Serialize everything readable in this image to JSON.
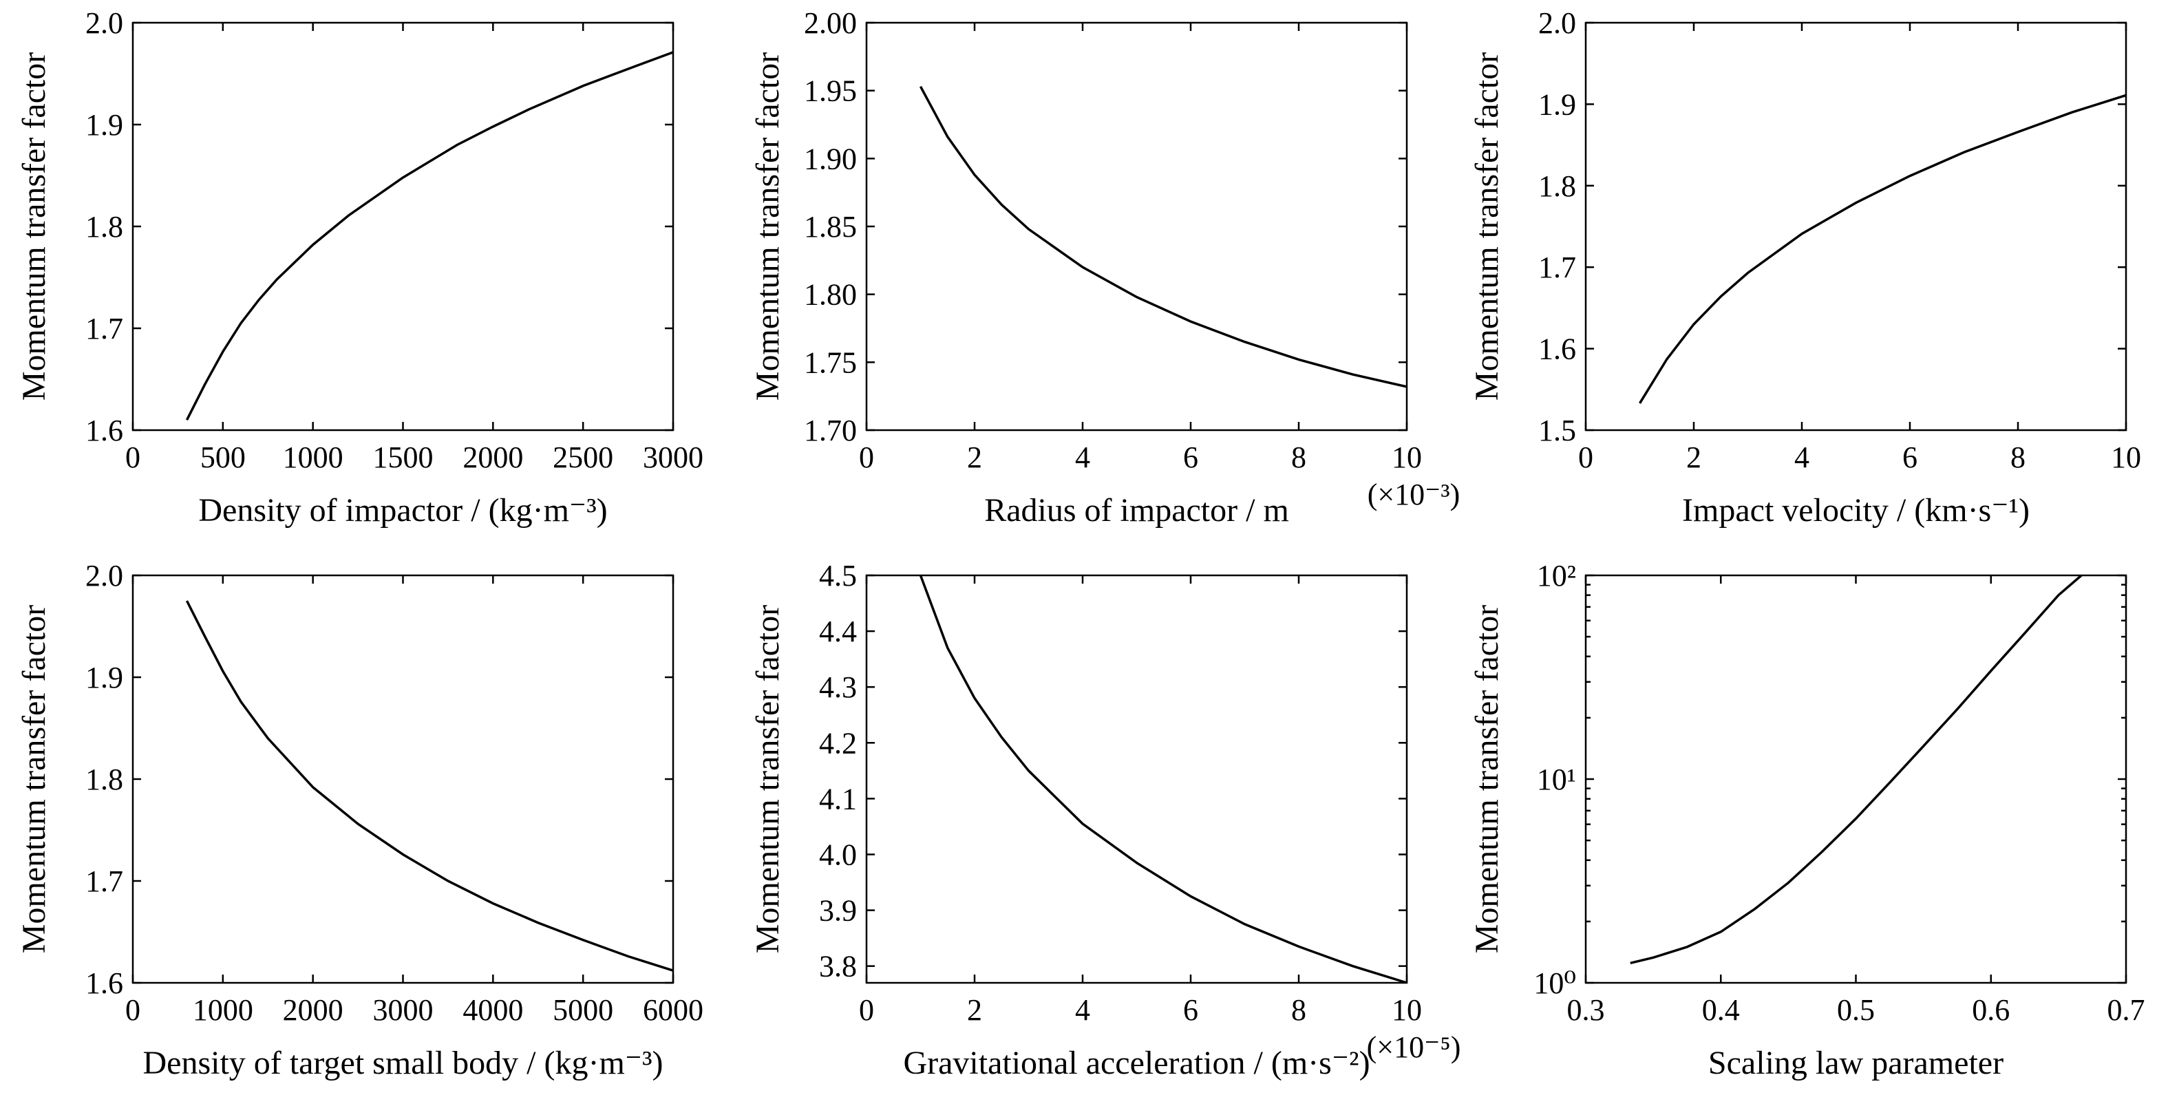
{
  "chart_data": [
    {
      "id": "p1",
      "type": "line",
      "xlabel": "Density of impactor / (kg·m⁻³)",
      "ylabel": "Momentum transfer factor",
      "xlim": [
        0,
        3000
      ],
      "ylim": [
        1.6,
        2.0
      ],
      "xticks": [
        0,
        500,
        1000,
        1500,
        2000,
        2500,
        3000
      ],
      "xtick_labels": [
        "0",
        "500",
        "1000",
        "1500",
        "2000",
        "2500",
        "3000"
      ],
      "yticks": [
        1.6,
        1.7,
        1.8,
        1.9,
        2.0
      ],
      "ytick_labels": [
        "1.6",
        "1.7",
        "1.8",
        "1.9",
        "2.0"
      ],
      "x_multiplier": "",
      "yscale": "linear",
      "grid": false,
      "series": [
        {
          "x": [
            300,
            400,
            500,
            600,
            700,
            800,
            1000,
            1200,
            1500,
            1800,
            2000,
            2200,
            2500,
            2800,
            3000
          ],
          "y": [
            1.61,
            1.645,
            1.677,
            1.705,
            1.728,
            1.748,
            1.782,
            1.811,
            1.848,
            1.88,
            1.898,
            1.915,
            1.938,
            1.958,
            1.971
          ]
        }
      ]
    },
    {
      "id": "p2",
      "type": "line",
      "xlabel": "Radius of impactor / m",
      "ylabel": "Momentum transfer factor",
      "xlim": [
        0,
        10
      ],
      "ylim": [
        1.7,
        2.0
      ],
      "xticks": [
        0,
        2,
        4,
        6,
        8,
        10
      ],
      "xtick_labels": [
        "0",
        "2",
        "4",
        "6",
        "8",
        "10"
      ],
      "yticks": [
        1.7,
        1.75,
        1.8,
        1.85,
        1.9,
        1.95,
        2.0
      ],
      "ytick_labels": [
        "1.70",
        "1.75",
        "1.80",
        "1.85",
        "1.90",
        "1.95",
        "2.00"
      ],
      "x_multiplier": "(×10⁻³)",
      "yscale": "linear",
      "grid": false,
      "series": [
        {
          "x": [
            1,
            1.5,
            2,
            2.5,
            3,
            4,
            5,
            6,
            7,
            8,
            9,
            10
          ],
          "y": [
            1.953,
            1.916,
            1.888,
            1.866,
            1.848,
            1.82,
            1.798,
            1.78,
            1.765,
            1.752,
            1.741,
            1.732
          ]
        }
      ]
    },
    {
      "id": "p3",
      "type": "line",
      "xlabel": "Impact velocity / (km·s⁻¹)",
      "ylabel": "Momentum transfer factor",
      "xlim": [
        0,
        10
      ],
      "ylim": [
        1.5,
        2.0
      ],
      "xticks": [
        0,
        2,
        4,
        6,
        8,
        10
      ],
      "xtick_labels": [
        "0",
        "2",
        "4",
        "6",
        "8",
        "10"
      ],
      "yticks": [
        1.5,
        1.6,
        1.7,
        1.8,
        1.9,
        2.0
      ],
      "ytick_labels": [
        "1.5",
        "1.6",
        "1.7",
        "1.8",
        "1.9",
        "2.0"
      ],
      "x_multiplier": "",
      "yscale": "linear",
      "grid": false,
      "series": [
        {
          "x": [
            1,
            1.5,
            2,
            2.5,
            3,
            4,
            5,
            6,
            7,
            8,
            9,
            10
          ],
          "y": [
            1.533,
            1.587,
            1.63,
            1.664,
            1.693,
            1.741,
            1.779,
            1.812,
            1.841,
            1.866,
            1.89,
            1.911
          ]
        }
      ]
    },
    {
      "id": "p4",
      "type": "line",
      "xlabel": "Density of target small body / (kg·m⁻³)",
      "ylabel": "Momentum transfer factor",
      "xlim": [
        0,
        6000
      ],
      "ylim": [
        1.6,
        2.0
      ],
      "xticks": [
        0,
        1000,
        2000,
        3000,
        4000,
        5000,
        6000
      ],
      "xtick_labels": [
        "0",
        "1000",
        "2000",
        "3000",
        "4000",
        "5000",
        "6000"
      ],
      "yticks": [
        1.6,
        1.7,
        1.8,
        1.9,
        2.0
      ],
      "ytick_labels": [
        "1.6",
        "1.7",
        "1.8",
        "1.9",
        "2.0"
      ],
      "x_multiplier": "",
      "yscale": "linear",
      "grid": false,
      "series": [
        {
          "x": [
            600,
            800,
            1000,
            1200,
            1500,
            2000,
            2500,
            3000,
            3500,
            4000,
            4500,
            5000,
            5500,
            6000
          ],
          "y": [
            1.975,
            1.94,
            1.906,
            1.876,
            1.84,
            1.792,
            1.756,
            1.726,
            1.7,
            1.678,
            1.659,
            1.642,
            1.626,
            1.612
          ]
        }
      ]
    },
    {
      "id": "p5",
      "type": "line",
      "xlabel": "Gravitational acceleration / (m·s⁻²)",
      "ylabel": "Momentum transfer factor",
      "xlim": [
        0,
        10
      ],
      "ylim": [
        3.77,
        4.5
      ],
      "xticks": [
        0,
        2,
        4,
        6,
        8,
        10
      ],
      "xtick_labels": [
        "0",
        "2",
        "4",
        "6",
        "8",
        "10"
      ],
      "yticks": [
        3.8,
        3.9,
        4.0,
        4.1,
        4.2,
        4.3,
        4.4,
        4.5
      ],
      "ytick_labels": [
        "3.8",
        "3.9",
        "4.0",
        "4.1",
        "4.2",
        "4.3",
        "4.4",
        "4.5"
      ],
      "x_multiplier": "(×10⁻⁵)",
      "yscale": "linear",
      "grid": false,
      "series": [
        {
          "x": [
            1,
            1.5,
            2,
            2.5,
            3,
            4,
            5,
            6,
            7,
            8,
            9,
            10
          ],
          "y": [
            4.5,
            4.37,
            4.28,
            4.21,
            4.15,
            4.055,
            3.985,
            3.925,
            3.875,
            3.835,
            3.8,
            3.77
          ]
        }
      ]
    },
    {
      "id": "p6",
      "type": "line",
      "xlabel": "Scaling law parameter",
      "ylabel": "Momentum transfer factor",
      "xlim": [
        0.3,
        0.7
      ],
      "ylim": [
        1,
        100
      ],
      "xticks": [
        0.3,
        0.4,
        0.5,
        0.6,
        0.7
      ],
      "xtick_labels": [
        "0.3",
        "0.4",
        "0.5",
        "0.6",
        "0.7"
      ],
      "yticks": [
        1,
        10,
        100
      ],
      "ytick_labels": [
        "10⁰",
        "10¹",
        "10²"
      ],
      "x_multiplier": "",
      "yscale": "log",
      "grid": false,
      "series": [
        {
          "x": [
            0.333,
            0.35,
            0.375,
            0.4,
            0.425,
            0.45,
            0.475,
            0.5,
            0.525,
            0.55,
            0.575,
            0.6,
            0.625,
            0.65,
            0.667
          ],
          "y": [
            1.25,
            1.33,
            1.5,
            1.78,
            2.3,
            3.1,
            4.4,
            6.4,
            9.6,
            14.5,
            22,
            34,
            52,
            80,
            100
          ]
        }
      ]
    }
  ]
}
